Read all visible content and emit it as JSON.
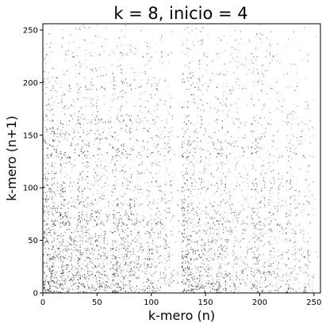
{
  "chart_data": {
    "type": "heatmap",
    "title": "k = 8, inicio = 4",
    "xlabel": "k-mero (n)",
    "ylabel": "k-mero (n+1)",
    "xlim": [
      0,
      256
    ],
    "ylim": [
      0,
      256
    ],
    "xticks": [
      0,
      50,
      100,
      150,
      200,
      250
    ],
    "yticks": [
      0,
      50,
      100,
      150,
      200,
      250
    ],
    "colormap": "binary",
    "grid": false,
    "description_of_values": "transition counts between consecutive k-mers; dense near-dark cells concentrated at low y and in blocks at x 0-120 and 128-250"
  },
  "colors": {
    "background": "#ffffff",
    "high": "#000000",
    "low": "#ffffff"
  }
}
